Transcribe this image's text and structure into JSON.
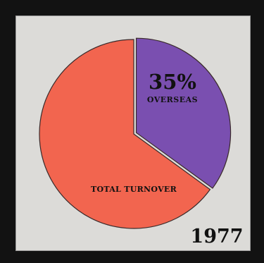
{
  "chart_data": {
    "type": "pie",
    "slices": [
      {
        "label": "OVERSEAS",
        "value": 35,
        "value_label": "35%",
        "color": "#7a4fb0"
      },
      {
        "label": "TOTAL TURNOVER",
        "value": 65,
        "color": "#f2654f"
      }
    ],
    "year": "1977",
    "start_angle_deg": 0,
    "direction": "clockwise"
  }
}
